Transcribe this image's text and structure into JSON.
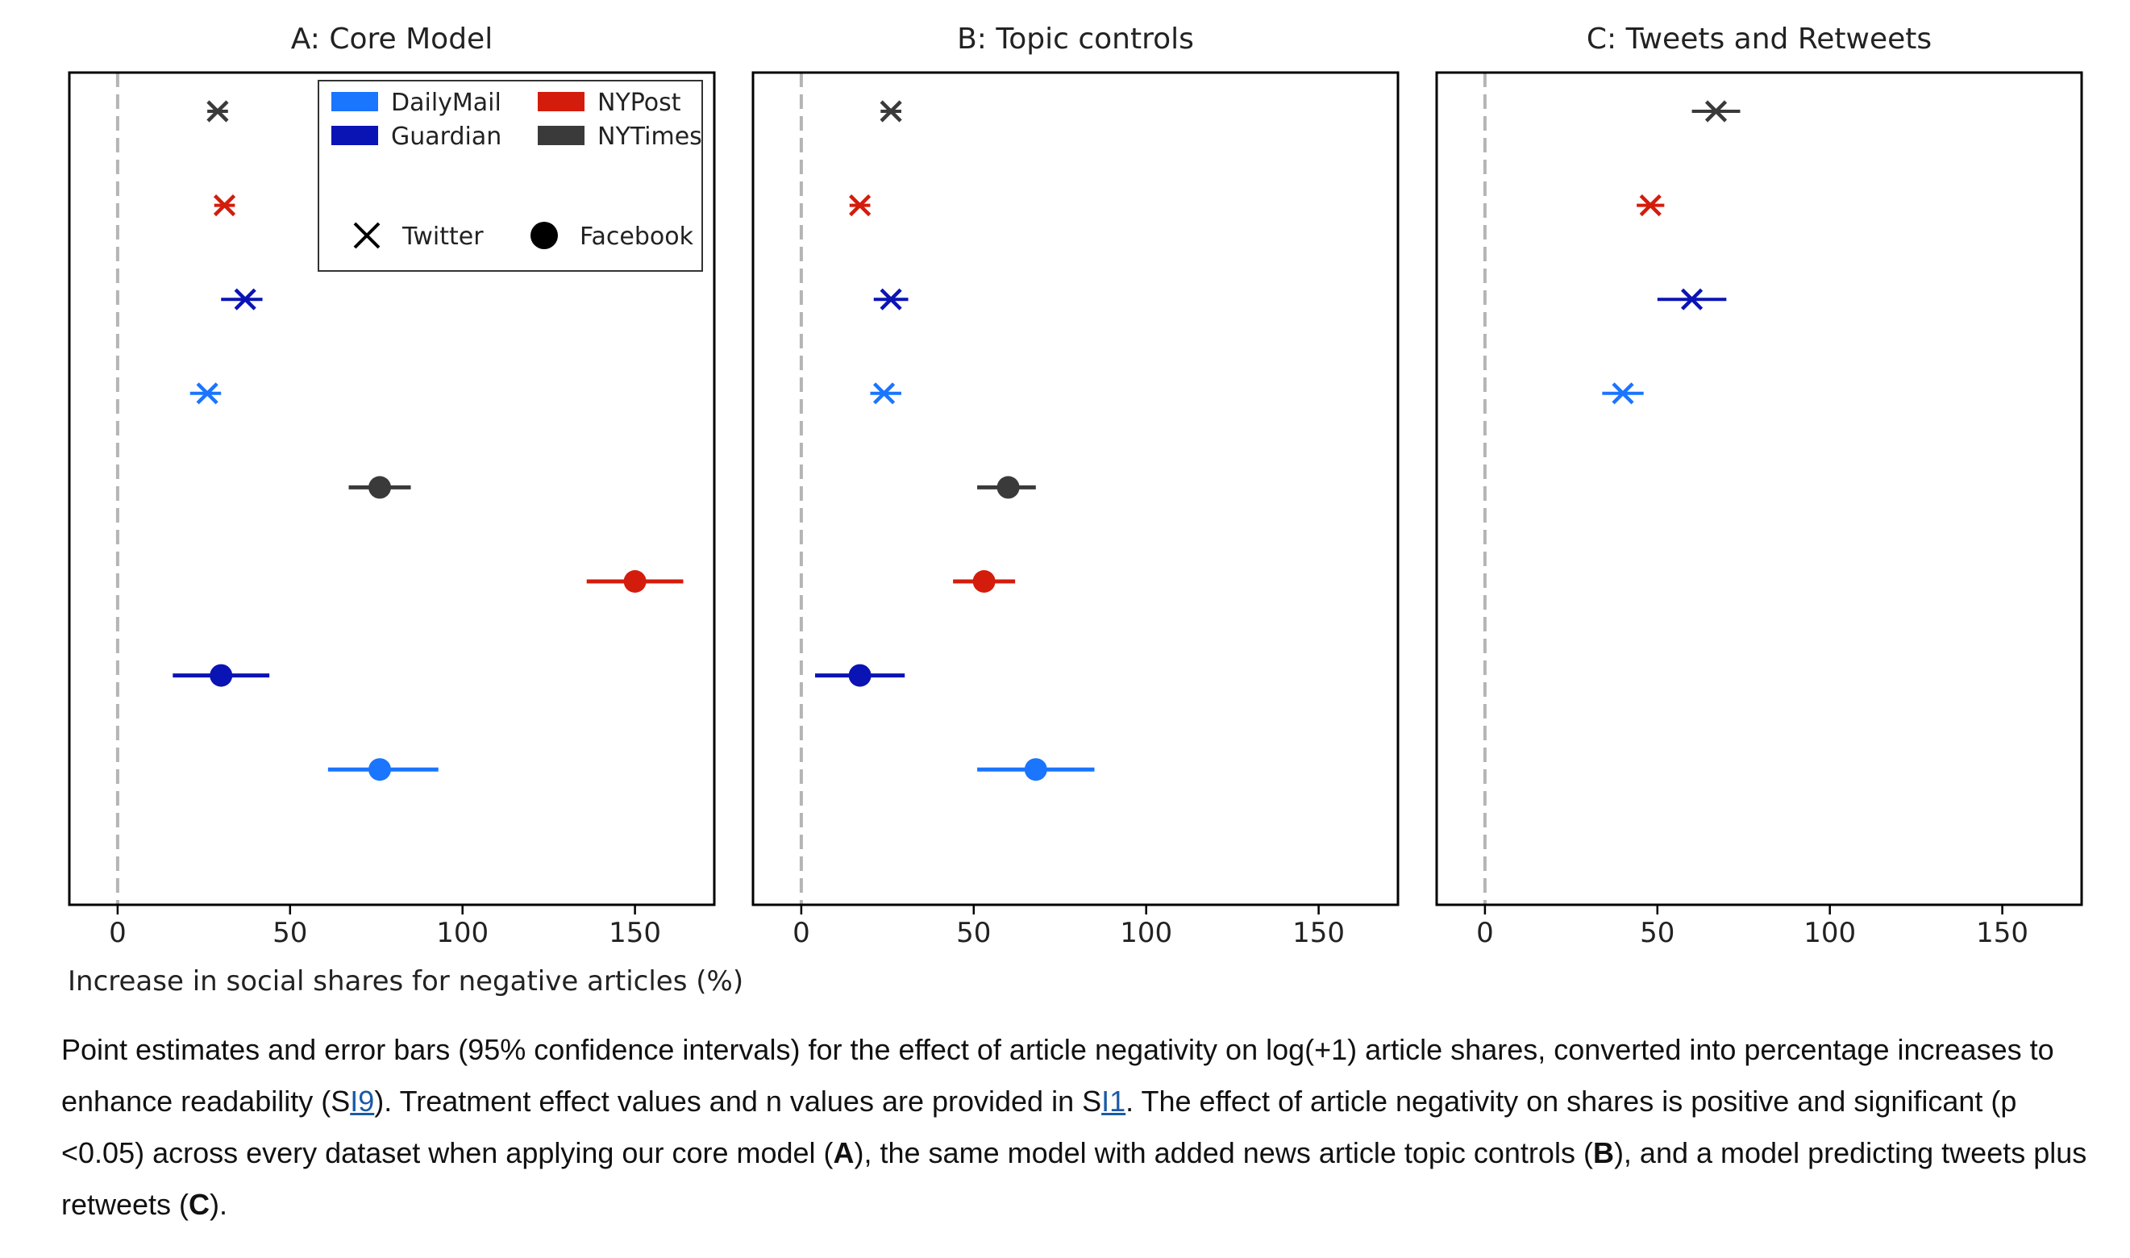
{
  "chart_data": {
    "type": "scatter",
    "subtype": "forest-plot",
    "xlabel": "Increase in social shares for negative articles (%)",
    "xlim": [
      -14,
      173
    ],
    "xticks": [
      0,
      50,
      100,
      150
    ],
    "reference_line_x": 0,
    "rows": [
      {
        "outlet": "NYTimes",
        "platform": "Twitter"
      },
      {
        "outlet": "NYPost",
        "platform": "Twitter"
      },
      {
        "outlet": "Guardian",
        "platform": "Twitter"
      },
      {
        "outlet": "DailyMail",
        "platform": "Twitter"
      },
      {
        "outlet": "NYTimes",
        "platform": "Facebook"
      },
      {
        "outlet": "NYPost",
        "platform": "Facebook"
      },
      {
        "outlet": "Guardian",
        "platform": "Facebook"
      },
      {
        "outlet": "DailyMail",
        "platform": "Facebook"
      }
    ],
    "colors": {
      "DailyMail": "#1a75ff",
      "Guardian": "#0a14b4",
      "NYPost": "#d41c0c",
      "NYTimes": "#3a3a3a"
    },
    "legend": {
      "outlets": [
        "DailyMail",
        "Guardian",
        "NYPost",
        "NYTimes"
      ],
      "platforms": [
        "Twitter",
        "Facebook"
      ],
      "location": "upper-center of panel A"
    },
    "panels": [
      {
        "title": "A: Core Model",
        "points": [
          {
            "row": 0,
            "est": 29,
            "lo": 26,
            "hi": 32
          },
          {
            "row": 1,
            "est": 31,
            "lo": 28,
            "hi": 34
          },
          {
            "row": 2,
            "est": 37,
            "lo": 30,
            "hi": 42
          },
          {
            "row": 3,
            "est": 26,
            "lo": 21,
            "hi": 30
          },
          {
            "row": 4,
            "est": 76,
            "lo": 67,
            "hi": 85
          },
          {
            "row": 5,
            "est": 150,
            "lo": 136,
            "hi": 164
          },
          {
            "row": 6,
            "est": 30,
            "lo": 16,
            "hi": 44
          },
          {
            "row": 7,
            "est": 76,
            "lo": 61,
            "hi": 93
          }
        ]
      },
      {
        "title": "B: Topic controls",
        "points": [
          {
            "row": 0,
            "est": 26,
            "lo": 23,
            "hi": 29
          },
          {
            "row": 1,
            "est": 17,
            "lo": 14,
            "hi": 20
          },
          {
            "row": 2,
            "est": 26,
            "lo": 21,
            "hi": 31
          },
          {
            "row": 3,
            "est": 24,
            "lo": 20,
            "hi": 29
          },
          {
            "row": 4,
            "est": 60,
            "lo": 51,
            "hi": 68
          },
          {
            "row": 5,
            "est": 53,
            "lo": 44,
            "hi": 62
          },
          {
            "row": 6,
            "est": 17,
            "lo": 4,
            "hi": 30
          },
          {
            "row": 7,
            "est": 68,
            "lo": 51,
            "hi": 85
          }
        ]
      },
      {
        "title": "C: Tweets and Retweets",
        "points": [
          {
            "row": 0,
            "est": 67,
            "lo": 60,
            "hi": 74
          },
          {
            "row": 1,
            "est": 48,
            "lo": 44,
            "hi": 52
          },
          {
            "row": 2,
            "est": 60,
            "lo": 50,
            "hi": 70
          },
          {
            "row": 3,
            "est": 40,
            "lo": 34,
            "hi": 46
          }
        ]
      }
    ]
  },
  "caption": {
    "p1": "Point estimates and error bars (95% confidence intervals) for the effect of article negativity on log(+1) article shares, converted into percentage increases to enhance readability (S",
    "link1": "I9",
    "p2": "). Treatment effect values and n values are provided in S",
    "link2": "I1",
    "p3": ". The effect of article negativity on shares is positive and significant (p <0.05) across every dataset when applying our core model (",
    "bA": "A",
    "p4": "), the same model with added news article topic controls (",
    "bB": "B",
    "p5": "), and a model predicting tweets plus retweets (",
    "bC": "C",
    "p6": ")."
  }
}
